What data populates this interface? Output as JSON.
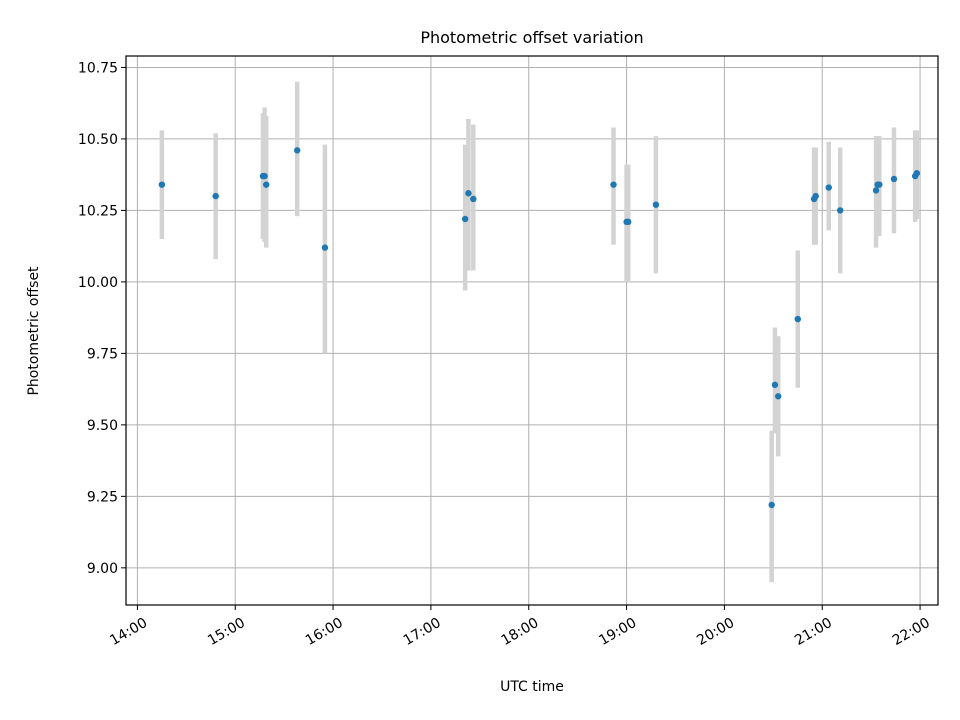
{
  "chart_data": {
    "type": "scatter",
    "title": "Photometric offset variation",
    "xlabel": "UTC time",
    "ylabel": "Photometric offset",
    "x_unit": "hours UTC",
    "xlim": [
      "13:53",
      "22:11"
    ],
    "ylim": [
      8.87,
      10.79
    ],
    "x_ticks": [
      "14:00",
      "15:00",
      "16:00",
      "17:00",
      "18:00",
      "19:00",
      "20:00",
      "21:00",
      "22:00"
    ],
    "y_ticks": [
      "9.00",
      "9.25",
      "9.50",
      "9.75",
      "10.00",
      "10.25",
      "10.50",
      "10.75"
    ],
    "grid": true,
    "point_color": "#1f77b4",
    "errorbar_color": "#d3d3d3",
    "series": [
      {
        "x": [
          "14:15",
          "14:48",
          "15:17",
          "15:18",
          "15:19",
          "15:38",
          "15:55",
          "17:21",
          "17:23",
          "17:26",
          "18:52",
          "19:00",
          "19:01",
          "19:18",
          "20:29",
          "20:31",
          "20:33",
          "20:45",
          "20:55",
          "20:56",
          "21:04",
          "21:11",
          "21:33",
          "21:34",
          "21:35",
          "21:44",
          "21:57",
          "21:58"
        ],
        "y": [
          10.34,
          10.3,
          10.37,
          10.37,
          10.34,
          10.46,
          10.12,
          10.22,
          10.31,
          10.29,
          10.34,
          10.21,
          10.21,
          10.27,
          9.22,
          9.64,
          9.6,
          9.87,
          10.29,
          10.3,
          10.33,
          10.25,
          10.32,
          10.34,
          10.34,
          10.36,
          10.37,
          10.38
        ],
        "err_low": [
          10.15,
          10.08,
          10.15,
          10.14,
          10.12,
          10.23,
          9.75,
          9.97,
          10.04,
          10.04,
          10.13,
          10.0,
          10.0,
          10.03,
          8.95,
          9.47,
          9.39,
          9.63,
          10.13,
          10.13,
          10.18,
          10.03,
          10.12,
          10.16,
          10.16,
          10.17,
          10.21,
          10.22
        ],
        "err_high": [
          10.53,
          10.52,
          10.59,
          10.61,
          10.58,
          10.7,
          10.48,
          10.48,
          10.57,
          10.55,
          10.54,
          10.41,
          10.41,
          10.51,
          9.48,
          9.84,
          9.81,
          10.11,
          10.47,
          10.47,
          10.49,
          10.47,
          10.51,
          10.51,
          10.51,
          10.54,
          10.53,
          10.53
        ]
      }
    ]
  }
}
